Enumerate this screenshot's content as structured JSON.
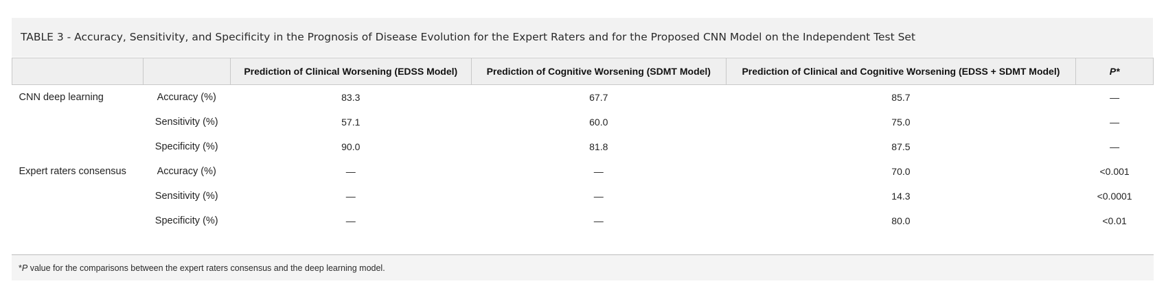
{
  "caption": "TABLE 3 - Accuracy, Sensitivity, and Specificity in the Prognosis of Disease Evolution for the Expert Raters and for the Proposed CNN Model on the Independent Test Set",
  "table": {
    "headers": {
      "group": "",
      "metric": "",
      "edss": "Prediction of Clinical Worsening (EDSS Model)",
      "sdmt": "Prediction of Cognitive Worsening (SDMT Model)",
      "combined": "Prediction of Clinical and Cognitive Worsening (EDSS + SDMT Model)",
      "p": "P*"
    },
    "rows": [
      {
        "group": "CNN deep learning",
        "metric": "Accuracy (%)",
        "edss": "83.3",
        "sdmt": "67.7",
        "combined": "85.7",
        "p": "—"
      },
      {
        "group": "",
        "metric": "Sensitivity (%)",
        "edss": "57.1",
        "sdmt": "60.0",
        "combined": "75.0",
        "p": "—"
      },
      {
        "group": "",
        "metric": "Specificity (%)",
        "edss": "90.0",
        "sdmt": "81.8",
        "combined": "87.5",
        "p": "—"
      },
      {
        "group": "Expert raters consensus",
        "metric": "Accuracy (%)",
        "edss": "—",
        "sdmt": "—",
        "combined": "70.0",
        "p": "<0.001"
      },
      {
        "group": "",
        "metric": "Sensitivity (%)",
        "edss": "—",
        "sdmt": "—",
        "combined": "14.3",
        "p": "<0.0001"
      },
      {
        "group": "",
        "metric": "Specificity (%)",
        "edss": "—",
        "sdmt": "—",
        "combined": "80.0",
        "p": "<0.01"
      }
    ]
  },
  "footnote": {
    "symbol": "*",
    "p_letter": "P",
    "text": " value for the comparisons between the expert raters consensus and the deep learning model."
  }
}
